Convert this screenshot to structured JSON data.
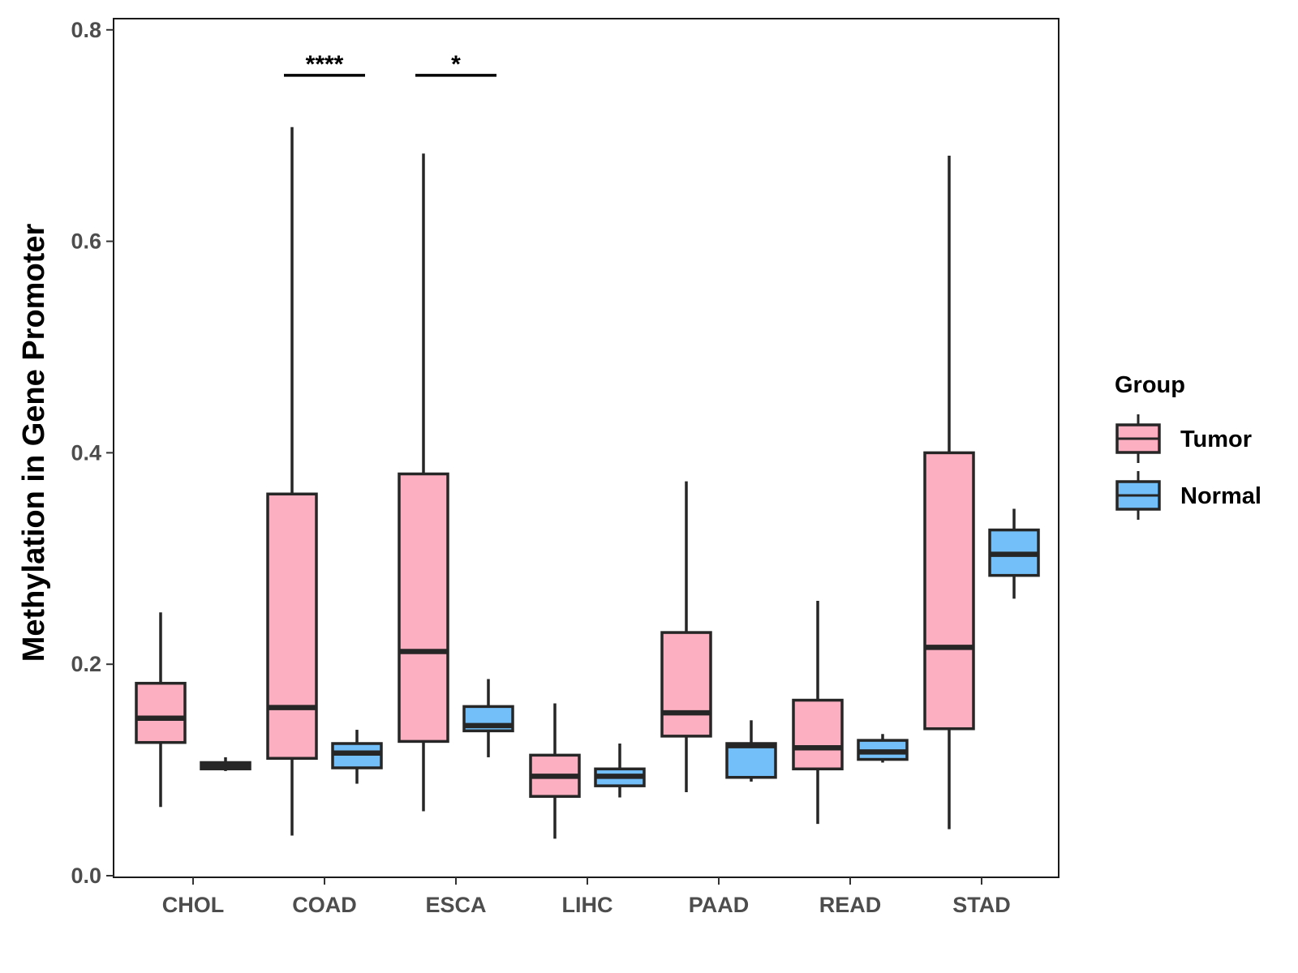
{
  "chart_data": {
    "type": "boxplot",
    "title": "",
    "xlabel": "",
    "ylabel": "Methylation in Gene Promoter",
    "ylim": [
      0,
      0.81
    ],
    "yticks": [
      0.0,
      0.2,
      0.4,
      0.6,
      0.8
    ],
    "ytick_labels": [
      "0.0",
      "0.2",
      "0.4",
      "0.6",
      "0.8"
    ],
    "categories": [
      "CHOL",
      "COAD",
      "ESCA",
      "LIHC",
      "PAAD",
      "READ",
      "STAD"
    ],
    "legend": {
      "title": "Group",
      "position": "right",
      "entries": [
        {
          "name": "Tumor",
          "color": "#FCAFC0"
        },
        {
          "name": "Normal",
          "color": "#72BFF9"
        }
      ]
    },
    "series": [
      {
        "name": "Tumor",
        "color": "#FCAFC0",
        "boxes": [
          {
            "category": "CHOL",
            "min": 0.065,
            "q1": 0.126,
            "median": 0.149,
            "q3": 0.182,
            "max": 0.249
          },
          {
            "category": "COAD",
            "min": 0.038,
            "q1": 0.111,
            "median": 0.159,
            "q3": 0.361,
            "max": 0.708
          },
          {
            "category": "ESCA",
            "min": 0.061,
            "q1": 0.127,
            "median": 0.212,
            "q3": 0.38,
            "max": 0.683
          },
          {
            "category": "LIHC",
            "min": 0.035,
            "q1": 0.075,
            "median": 0.094,
            "q3": 0.114,
            "max": 0.163
          },
          {
            "category": "PAAD",
            "min": 0.079,
            "q1": 0.132,
            "median": 0.154,
            "q3": 0.23,
            "max": 0.373
          },
          {
            "category": "READ",
            "min": 0.049,
            "q1": 0.101,
            "median": 0.121,
            "q3": 0.166,
            "max": 0.26
          },
          {
            "category": "STAD",
            "min": 0.044,
            "q1": 0.139,
            "median": 0.216,
            "q3": 0.4,
            "max": 0.681
          }
        ]
      },
      {
        "name": "Normal",
        "color": "#72BFF9",
        "boxes": [
          {
            "category": "CHOL",
            "min": 0.099,
            "q1": 0.101,
            "median": 0.104,
            "q3": 0.107,
            "max": 0.112
          },
          {
            "category": "COAD",
            "min": 0.087,
            "q1": 0.102,
            "median": 0.116,
            "q3": 0.125,
            "max": 0.138
          },
          {
            "category": "ESCA",
            "min": 0.112,
            "q1": 0.137,
            "median": 0.142,
            "q3": 0.16,
            "max": 0.186
          },
          {
            "category": "LIHC",
            "min": 0.074,
            "q1": 0.085,
            "median": 0.094,
            "q3": 0.101,
            "max": 0.125
          },
          {
            "category": "PAAD",
            "min": 0.089,
            "q1": 0.093,
            "median": 0.123,
            "q3": 0.125,
            "max": 0.147
          },
          {
            "category": "READ",
            "min": 0.107,
            "q1": 0.11,
            "median": 0.117,
            "q3": 0.128,
            "max": 0.134
          },
          {
            "category": "STAD",
            "min": 0.262,
            "q1": 0.284,
            "median": 0.304,
            "q3": 0.327,
            "max": 0.347
          }
        ]
      }
    ],
    "significance": [
      {
        "category": "COAD",
        "label": "****",
        "y": 0.757
      },
      {
        "category": "ESCA",
        "label": "*",
        "y": 0.757
      }
    ]
  }
}
